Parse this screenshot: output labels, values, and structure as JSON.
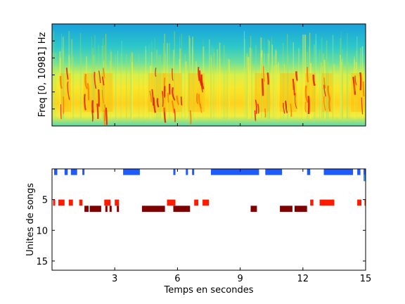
{
  "chart_data": [
    {
      "type": "heatmap",
      "ylabel": "Freq [0, 10981] Hz",
      "xlim": [
        0,
        15
      ],
      "ylim": [
        0,
        10981
      ],
      "colormap": "jet",
      "active_segments": [
        {
          "start": 0.4,
          "end": 0.9
        },
        {
          "start": 1.5,
          "end": 2.5
        },
        {
          "start": 2.4,
          "end": 2.9
        },
        {
          "start": 4.6,
          "end": 5.4
        },
        {
          "start": 5.3,
          "end": 6.2
        },
        {
          "start": 6.5,
          "end": 7.3
        },
        {
          "start": 9.7,
          "end": 10.4
        },
        {
          "start": 10.9,
          "end": 11.7
        },
        {
          "start": 12.1,
          "end": 12.6
        },
        {
          "start": 12.9,
          "end": 13.4
        },
        {
          "start": 14.3,
          "end": 14.9
        }
      ]
    },
    {
      "type": "scatter",
      "title": "",
      "xlabel": "Temps en secondes",
      "ylabel": "Unites de songs",
      "xlim": [
        0,
        15
      ],
      "ylim": [
        0,
        16.5
      ],
      "y_reversed": true,
      "xticks": [
        3,
        6,
        9,
        12,
        15
      ],
      "yticks": [
        5,
        10,
        15
      ],
      "units": [
        {
          "unit": 1,
          "color": "#1f5aff",
          "segments": [
            [
              0.1,
              0.25
            ],
            [
              0.6,
              0.75
            ],
            [
              0.9,
              1.2
            ],
            [
              1.45,
              1.55
            ],
            [
              3.4,
              4.2
            ],
            [
              5.8,
              5.9
            ],
            [
              6.4,
              6.5
            ],
            [
              6.7,
              6.8
            ],
            [
              7.6,
              9.9
            ],
            [
              10.2,
              11.0
            ],
            [
              12.2,
              12.35
            ],
            [
              13.0,
              14.4
            ],
            [
              14.6,
              14.75
            ],
            [
              14.9,
              15.0
            ]
          ]
        },
        {
          "unit": 2,
          "color": "#1f9bff",
          "segments": [
            [
              14.9,
              15.0
            ]
          ]
        },
        {
          "unit": 6,
          "color": "#ff1a00",
          "segments": [
            [
              0.05,
              0.15
            ],
            [
              0.3,
              0.6
            ],
            [
              0.8,
              1.0
            ],
            [
              1.3,
              1.45
            ],
            [
              2.5,
              2.8
            ],
            [
              3.0,
              3.2
            ],
            [
              5.5,
              5.9
            ],
            [
              6.8,
              7.0
            ],
            [
              7.2,
              7.5
            ],
            [
              12.35,
              12.5
            ],
            [
              12.8,
              13.5
            ],
            [
              14.6,
              14.8
            ],
            [
              14.95,
              15.0
            ]
          ]
        },
        {
          "unit": 7,
          "color": "#7f0000",
          "segments": [
            [
              1.55,
              1.75
            ],
            [
              1.8,
              2.35
            ],
            [
              2.55,
              2.65
            ],
            [
              2.75,
              2.85
            ],
            [
              3.1,
              3.2
            ],
            [
              4.3,
              5.4
            ],
            [
              5.8,
              6.6
            ],
            [
              9.5,
              9.8
            ],
            [
              10.9,
              11.5
            ],
            [
              11.6,
              12.2
            ]
          ]
        }
      ]
    }
  ]
}
